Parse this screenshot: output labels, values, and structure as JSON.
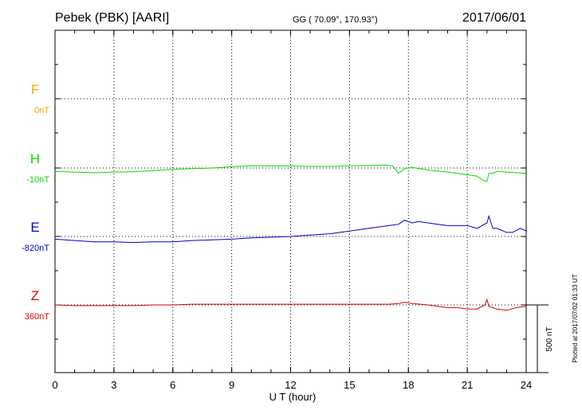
{
  "header": {
    "station": "Pebek (PBK)  [AARI]",
    "coords": "GG ( 70.09°, 170.93°)",
    "date": "2017/06/01"
  },
  "footer": {
    "plotted": "Plotted at 2017/07/02 01:33 UT"
  },
  "chart_data": {
    "type": "line",
    "xlabel": "U T (hour)",
    "xlim": [
      0,
      24
    ],
    "xticks": [
      "0",
      "3",
      "6",
      "9",
      "12",
      "15",
      "18",
      "21",
      "24"
    ],
    "scale_label": "500 nT",
    "grid": true,
    "colors": {
      "F": "#ffa500",
      "H": "#00dd00",
      "E": "#0000cc",
      "Z": "#dd0000"
    },
    "series": [
      {
        "name": "F",
        "baseline": "0nT",
        "x": [],
        "values": []
      },
      {
        "name": "H",
        "baseline": "-10nT",
        "x": [
          0,
          1,
          2,
          3,
          4,
          5,
          6,
          7,
          8,
          8.5,
          9,
          10,
          11,
          12,
          13,
          14,
          15,
          16,
          16.8,
          17.2,
          17.5,
          17.8,
          18.2,
          19,
          20,
          20.5,
          21,
          21.5,
          21.8,
          22,
          22.1,
          22.3,
          22.5,
          23,
          23.5,
          24
        ],
        "values": [
          -25,
          -30,
          -35,
          -30,
          -28,
          -20,
          -10,
          -5,
          0,
          5,
          10,
          15,
          15,
          15,
          12,
          12,
          15,
          18,
          22,
          15,
          -40,
          -5,
          5,
          -15,
          -30,
          -40,
          -50,
          -60,
          -90,
          -100,
          -40,
          -40,
          -25,
          -30,
          -35,
          -40
        ]
      },
      {
        "name": "E",
        "baseline": "-820nT",
        "x": [
          0,
          1,
          2,
          3,
          4,
          5,
          6,
          7,
          8,
          9,
          10,
          11,
          12,
          13,
          14,
          15,
          16,
          17,
          17.5,
          17.8,
          18.2,
          18.5,
          19,
          19.5,
          20,
          21,
          21.5,
          22,
          22.1,
          22.3,
          22.5,
          23,
          23.3,
          23.7,
          24
        ],
        "values": [
          -20,
          -30,
          -40,
          -40,
          -45,
          -40,
          -40,
          -30,
          -25,
          -20,
          -10,
          -5,
          0,
          10,
          20,
          40,
          60,
          80,
          90,
          120,
          100,
          110,
          100,
          90,
          80,
          80,
          60,
          100,
          150,
          60,
          60,
          30,
          30,
          60,
          40
        ]
      },
      {
        "name": "Z",
        "baseline": "360nT",
        "x": [
          0,
          1,
          2,
          3,
          4,
          5,
          6,
          7,
          8,
          9,
          10,
          11,
          12,
          13,
          14,
          15,
          16,
          17,
          17.5,
          17.8,
          18.2,
          19,
          19.5,
          20,
          20.5,
          21,
          21.5,
          21.9,
          22,
          22.1,
          22.3,
          22.5,
          23,
          23.5,
          24
        ],
        "values": [
          0,
          -5,
          -5,
          -5,
          -5,
          0,
          0,
          5,
          5,
          5,
          5,
          5,
          5,
          5,
          5,
          5,
          5,
          5,
          10,
          20,
          10,
          0,
          -10,
          -20,
          -20,
          -30,
          -30,
          0,
          40,
          -10,
          -20,
          -30,
          -40,
          -20,
          -10
        ]
      }
    ]
  }
}
